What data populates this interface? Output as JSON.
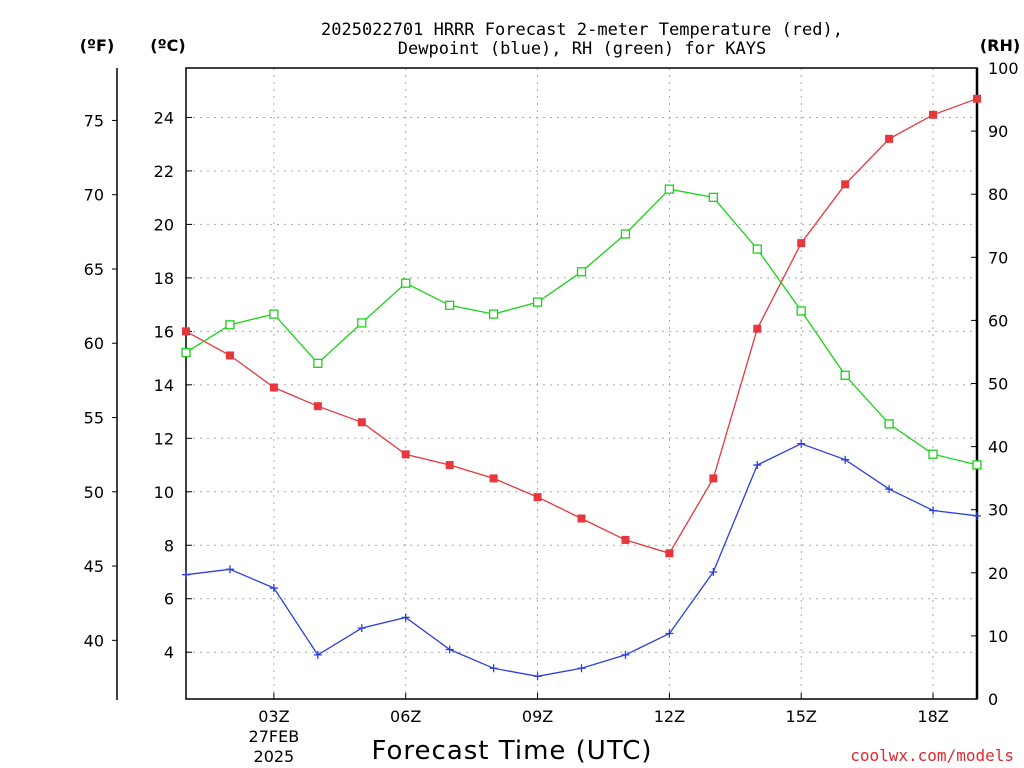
{
  "title_line1": "2025022701 HRRR Forecast 2-meter Temperature (red),",
  "title_line2": "Dewpoint (blue), RH (green) for KAYS",
  "units": {
    "fahrenheit": "(ºF)",
    "celsius": "(ºC)",
    "rh": "(RH)"
  },
  "xlabel": "Forecast Time (UTC)",
  "credit": "coolwx.com/models",
  "colors": {
    "temperature": "#e8363c",
    "dewpoint": "#2b3fe0",
    "rh": "#19d219"
  },
  "chart_data": {
    "type": "line",
    "title": "2025022701 HRRR Forecast 2-meter Temperature (red), Dewpoint (blue), RH (green) for KAYS",
    "xlabel": "Forecast Time (UTC)",
    "x": [
      "01Z",
      "02Z",
      "03Z",
      "04Z",
      "05Z",
      "06Z",
      "07Z",
      "08Z",
      "09Z",
      "10Z",
      "11Z",
      "12Z",
      "13Z",
      "14Z",
      "15Z",
      "16Z",
      "17Z",
      "18Z",
      "19Z"
    ],
    "xticks": [
      {
        "label": "03Z",
        "sub": [
          "27FEB",
          "2025"
        ]
      },
      {
        "label": "06Z"
      },
      {
        "label": "09Z"
      },
      {
        "label": "12Z"
      },
      {
        "label": "15Z"
      },
      {
        "label": "18Z"
      }
    ],
    "y_left_c": {
      "ylabel": "(ºC)",
      "ylim": [
        2.25,
        25.85
      ],
      "ticks": [
        4,
        6,
        8,
        10,
        12,
        14,
        16,
        18,
        20,
        22,
        24
      ]
    },
    "y_left_f": {
      "ylabel": "(ºF)",
      "ticks": [
        40,
        45,
        50,
        55,
        60,
        65,
        70,
        75
      ]
    },
    "y_right_rh": {
      "ylabel": "(RH)",
      "ylim": [
        0,
        100
      ],
      "ticks": [
        0,
        10,
        20,
        30,
        40,
        50,
        60,
        70,
        80,
        90,
        100
      ]
    },
    "series": [
      {
        "name": "Temperature",
        "axis": "C",
        "marker": "filled-square",
        "values": [
          16.0,
          15.1,
          13.9,
          13.2,
          12.6,
          11.4,
          11.0,
          10.5,
          9.8,
          9.0,
          8.2,
          7.7,
          10.5,
          16.1,
          19.3,
          21.5,
          23.2,
          24.1,
          24.7
        ]
      },
      {
        "name": "Dewpoint",
        "axis": "C",
        "marker": "plus",
        "values": [
          6.9,
          7.1,
          6.4,
          3.9,
          4.9,
          5.3,
          4.1,
          3.4,
          3.1,
          3.4,
          3.9,
          4.7,
          7.0,
          11.0,
          11.8,
          11.2,
          10.1,
          9.3,
          9.1
        ]
      },
      {
        "name": "RH",
        "axis": "RH",
        "marker": "open-square",
        "values": [
          54.9,
          59.3,
          61.0,
          53.2,
          59.6,
          65.9,
          62.4,
          61.0,
          62.9,
          67.7,
          73.7,
          80.8,
          79.5,
          71.3,
          61.5,
          51.3,
          43.6,
          38.8,
          37.1
        ]
      }
    ],
    "grid": true
  }
}
